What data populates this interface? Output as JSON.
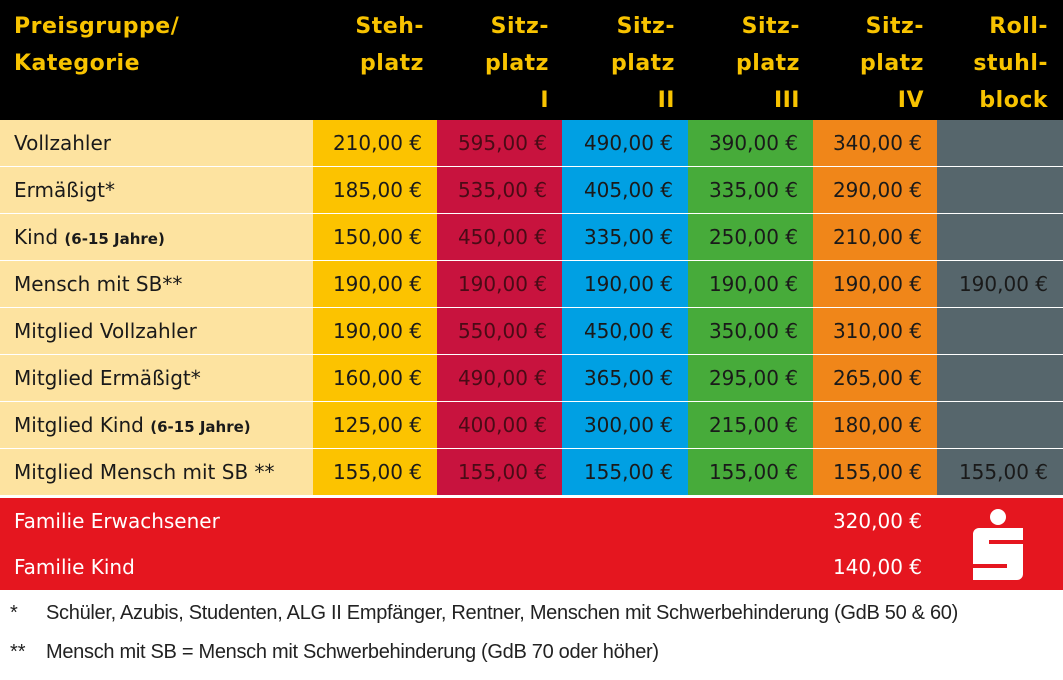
{
  "header": {
    "category": [
      "Preisgruppe/",
      "Kategorie"
    ],
    "columns": [
      [
        "Steh-",
        "platz"
      ],
      [
        "Sitz-",
        "platz",
        "I"
      ],
      [
        "Sitz-",
        "platz",
        "II"
      ],
      [
        "Sitz-",
        "platz",
        "III"
      ],
      [
        "Sitz-",
        "platz",
        "IV"
      ],
      [
        "Roll-",
        "stuhl-",
        "block"
      ]
    ]
  },
  "colors": {
    "header_bg": "#000000",
    "header_text": "#f8c300",
    "label_bg": "#fde3a0",
    "stehplatz": "#fcc300",
    "sitzplatz_1": "#c8133e",
    "sitzplatz_2": "#00a0e3",
    "sitzplatz_3": "#47ab3a",
    "sitzplatz_4": "#f08619",
    "rollstuhlblock": "#56666c",
    "family_bg": "#e5161f"
  },
  "rows": [
    {
      "label": "Vollzahler",
      "note": "",
      "prices": [
        "210,00 €",
        "595,00 €",
        "490,00 €",
        "390,00 €",
        "340,00 €",
        ""
      ]
    },
    {
      "label": "Ermäßigt*",
      "note": "",
      "prices": [
        "185,00 €",
        "535,00 €",
        "405,00 €",
        "335,00 €",
        "290,00 €",
        ""
      ]
    },
    {
      "label": "Kind",
      "note": "(6-15 Jahre)",
      "prices": [
        "150,00 €",
        "450,00 €",
        "335,00 €",
        "250,00 €",
        "210,00 €",
        ""
      ]
    },
    {
      "label": "Mensch mit SB**",
      "note": "",
      "prices": [
        "190,00 €",
        "190,00 €",
        "190,00 €",
        "190,00 €",
        "190,00 €",
        "190,00 €"
      ]
    },
    {
      "label": "Mitglied Vollzahler",
      "note": "",
      "prices": [
        "190,00 €",
        "550,00 €",
        "450,00 €",
        "350,00 €",
        "310,00 €",
        ""
      ]
    },
    {
      "label": "Mitglied Ermäßigt*",
      "note": "",
      "prices": [
        "160,00 €",
        "490,00 €",
        "365,00 €",
        "295,00 €",
        "265,00 €",
        ""
      ]
    },
    {
      "label": "Mitglied Kind",
      "note": "(6-15 Jahre)",
      "prices": [
        "125,00 €",
        "400,00 €",
        "300,00 €",
        "215,00 €",
        "180,00 €",
        ""
      ]
    },
    {
      "label": "Mitglied Mensch mit  SB **",
      "note": "",
      "prices": [
        "155,00 €",
        "155,00 €",
        "155,00 €",
        "155,00 €",
        "155,00 €",
        "155,00 €"
      ]
    }
  ],
  "family": [
    {
      "label": "Familie Erwachsener",
      "price": "320,00 €"
    },
    {
      "label": "Familie Kind",
      "price": "140,00 €"
    }
  ],
  "logo": {
    "icon": "sparkasse-logo-icon"
  },
  "footnotes": [
    {
      "mark": "*",
      "text": "Schüler, Azubis, Studenten, ALG II Empfänger, Rentner, Menschen mit Schwerbehinderung (GdB 50 & 60)"
    },
    {
      "mark": "**",
      "text": "Mensch mit SB = Mensch mit Schwerbehinderung (GdB 70 oder höher)"
    }
  ]
}
